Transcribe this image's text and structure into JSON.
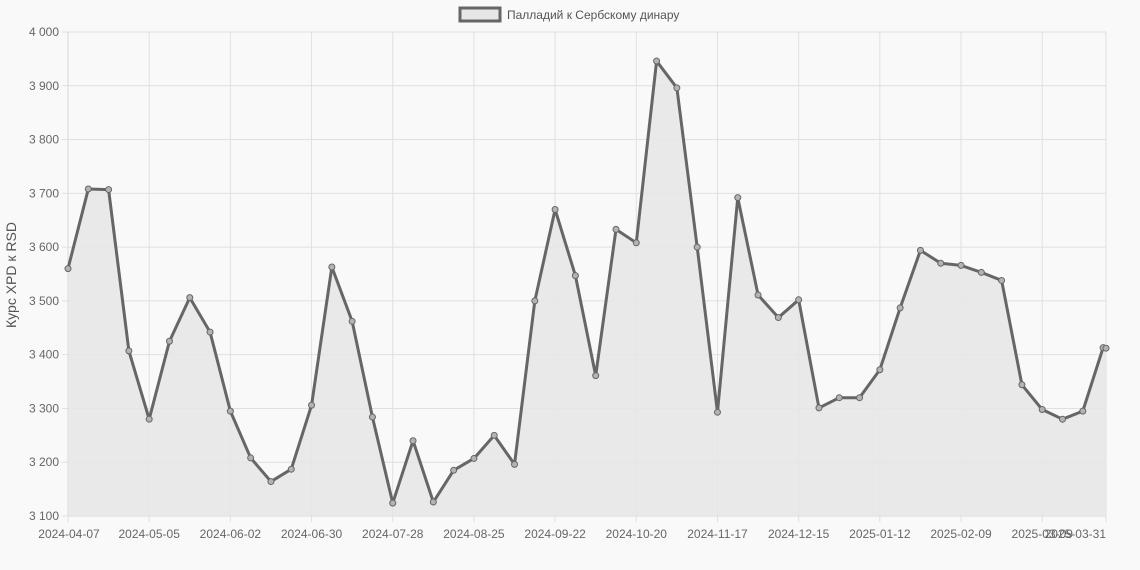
{
  "chart_data": {
    "type": "area",
    "ylabel": "Курс XPD к RSD",
    "xlabel": "",
    "ylim": [
      3100,
      4000
    ],
    "y_ticks": [
      "3 100",
      "3 200",
      "3 300",
      "3 400",
      "3 500",
      "3 600",
      "3 700",
      "3 800",
      "3 900",
      "4 000"
    ],
    "x_tick_labels": [
      "2024-04-07",
      "2024-05-05",
      "2024-06-02",
      "2024-06-30",
      "2024-07-28",
      "2024-08-25",
      "2024-09-22",
      "2024-10-20",
      "2024-11-17",
      "2024-12-15",
      "2025-01-12",
      "2025-02-09",
      "2025-03-09",
      "2025-03-31"
    ],
    "grid": true,
    "legend_position": "top-center",
    "series": [
      {
        "name": "Палладий к Сербскому динару",
        "color": "#666666",
        "fill": "#e6e6e6",
        "x": [
          "2024-04-07",
          "2024-04-14",
          "2024-04-21",
          "2024-04-28",
          "2024-05-05",
          "2024-05-12",
          "2024-05-19",
          "2024-05-26",
          "2024-06-02",
          "2024-06-09",
          "2024-06-16",
          "2024-06-23",
          "2024-06-30",
          "2024-07-07",
          "2024-07-14",
          "2024-07-21",
          "2024-07-28",
          "2024-08-04",
          "2024-08-11",
          "2024-08-18",
          "2024-08-25",
          "2024-09-01",
          "2024-09-08",
          "2024-09-15",
          "2024-09-22",
          "2024-09-29",
          "2024-10-06",
          "2024-10-13",
          "2024-10-20",
          "2024-10-27",
          "2024-11-03",
          "2024-11-10",
          "2024-11-17",
          "2024-11-24",
          "2024-12-01",
          "2024-12-08",
          "2024-12-15",
          "2024-12-22",
          "2024-12-29",
          "2025-01-05",
          "2025-01-12",
          "2025-01-19",
          "2025-01-26",
          "2025-02-02",
          "2025-02-09",
          "2025-02-16",
          "2025-02-23",
          "2025-03-02",
          "2025-03-09",
          "2025-03-16",
          "2025-03-23",
          "2025-03-30",
          "2025-03-31"
        ],
        "values": [
          3560,
          3708,
          3707,
          3407,
          3280,
          3425,
          3506,
          3442,
          3295,
          3208,
          3164,
          3187,
          3306,
          3563,
          3462,
          3284,
          3124,
          3240,
          3126,
          3185,
          3207,
          3250,
          3196,
          3500,
          3670,
          3547,
          3361,
          3633,
          3608,
          3946,
          3896,
          3600,
          3293,
          3692,
          3511,
          3469,
          3502,
          3301,
          3320,
          3320,
          3372,
          3487,
          3594,
          3570,
          3566,
          3553,
          3538,
          3344,
          3298,
          3280,
          3295,
          3413,
          3412
        ]
      }
    ]
  }
}
